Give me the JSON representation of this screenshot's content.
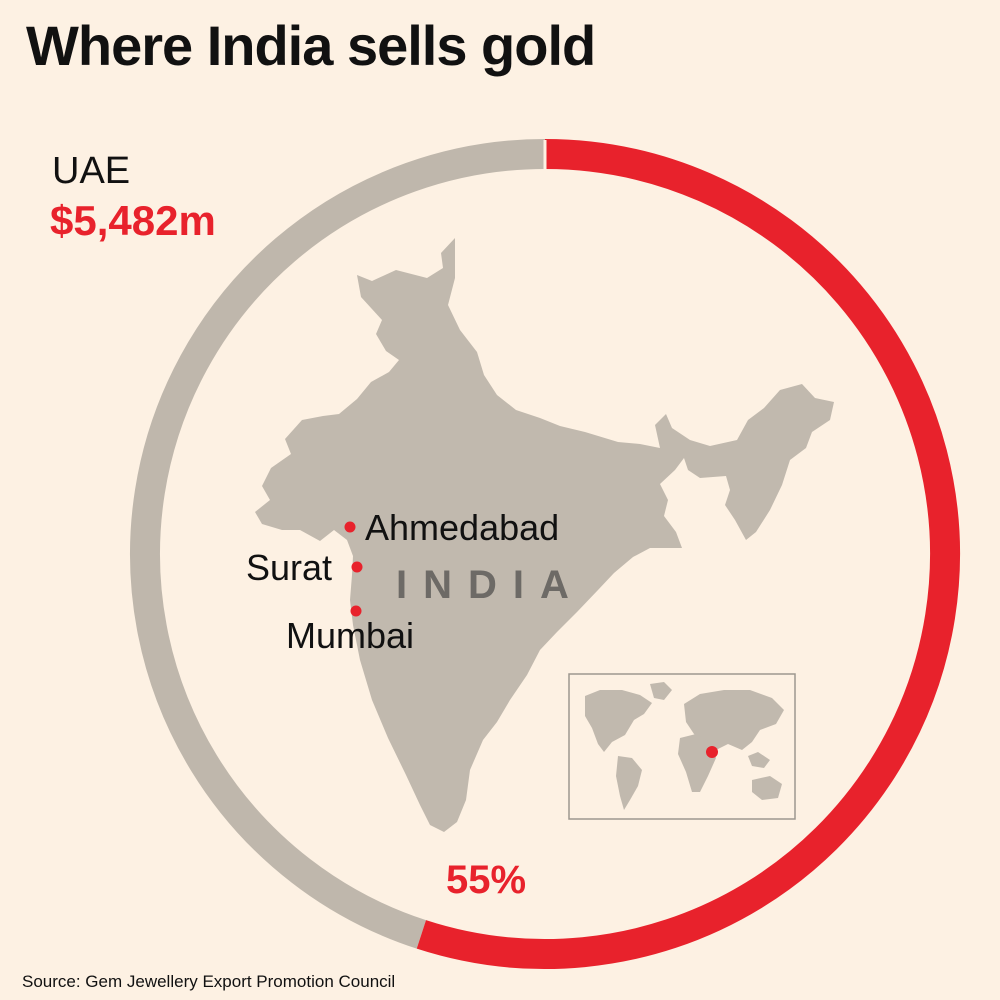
{
  "title": "Where India sells gold",
  "destination": {
    "country": "UAE",
    "value": "$5,482m",
    "share_label": "55%",
    "share": 0.55
  },
  "map": {
    "country_label": "INDIA",
    "cities": [
      {
        "name": "Ahmedabad"
      },
      {
        "name": "Surat"
      },
      {
        "name": "Mumbai"
      }
    ]
  },
  "colors": {
    "background": "#fdf1e3",
    "accent": "#e8222c",
    "land": "#c1b9ae",
    "ring_remainder": "#bfb7ac"
  },
  "source": "Source: Gem Jewellery Export Promotion Council"
}
